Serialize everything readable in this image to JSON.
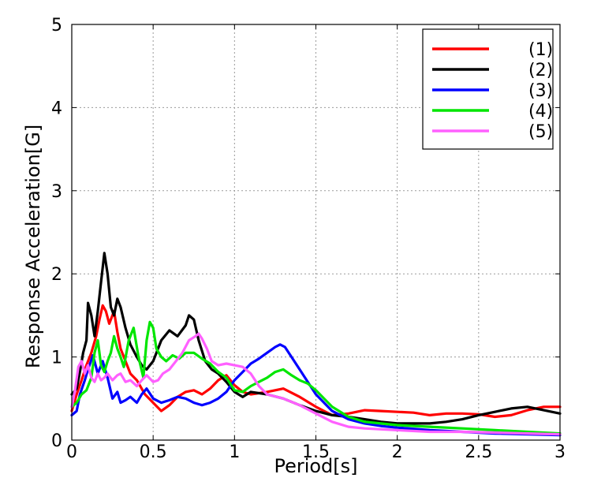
{
  "chart_data": {
    "type": "line",
    "title": "",
    "xlabel": "Period[s]",
    "ylabel": "Response Acceleration[G]",
    "xlim": [
      0,
      3
    ],
    "ylim": [
      0,
      5
    ],
    "xticks": [
      0,
      0.5,
      1,
      1.5,
      2,
      2.5,
      3
    ],
    "xtick_labels": [
      "0",
      "0.5",
      "1",
      "1.5",
      "2",
      "2.5",
      "3"
    ],
    "yticks": [
      0,
      1,
      2,
      3,
      4,
      5
    ],
    "ytick_labels": [
      "0",
      "1",
      "2",
      "3",
      "4",
      "5"
    ],
    "grid": true,
    "legend_position": "top-right",
    "series": [
      {
        "name": "(1)",
        "color": "#ff0000",
        "x": [
          0,
          0.03,
          0.06,
          0.09,
          0.12,
          0.15,
          0.17,
          0.19,
          0.21,
          0.23,
          0.26,
          0.28,
          0.3,
          0.33,
          0.36,
          0.4,
          0.45,
          0.5,
          0.55,
          0.6,
          0.65,
          0.7,
          0.75,
          0.8,
          0.85,
          0.9,
          0.95,
          1.0,
          1.05,
          1.1,
          1.2,
          1.3,
          1.4,
          1.5,
          1.6,
          1.7,
          1.8,
          1.9,
          2.0,
          2.1,
          2.2,
          2.3,
          2.4,
          2.5,
          2.6,
          2.7,
          2.8,
          2.9,
          3.0
        ],
        "y": [
          0.35,
          0.55,
          0.72,
          0.9,
          1.05,
          1.25,
          1.45,
          1.62,
          1.55,
          1.4,
          1.55,
          1.3,
          1.1,
          0.95,
          0.8,
          0.72,
          0.55,
          0.45,
          0.35,
          0.42,
          0.52,
          0.58,
          0.6,
          0.55,
          0.62,
          0.72,
          0.78,
          0.66,
          0.58,
          0.55,
          0.58,
          0.62,
          0.52,
          0.4,
          0.3,
          0.32,
          0.36,
          0.35,
          0.34,
          0.33,
          0.3,
          0.32,
          0.32,
          0.31,
          0.28,
          0.3,
          0.36,
          0.4,
          0.4
        ]
      },
      {
        "name": "(2)",
        "color": "#000000",
        "x": [
          0,
          0.03,
          0.05,
          0.07,
          0.09,
          0.1,
          0.12,
          0.14,
          0.16,
          0.18,
          0.2,
          0.22,
          0.24,
          0.26,
          0.28,
          0.3,
          0.33,
          0.36,
          0.4,
          0.43,
          0.46,
          0.5,
          0.55,
          0.6,
          0.65,
          0.7,
          0.72,
          0.75,
          0.78,
          0.82,
          0.86,
          0.9,
          0.95,
          1.0,
          1.05,
          1.1,
          1.2,
          1.3,
          1.4,
          1.5,
          1.6,
          1.7,
          1.8,
          1.9,
          2.0,
          2.1,
          2.2,
          2.3,
          2.4,
          2.5,
          2.6,
          2.7,
          2.8,
          2.9,
          3.0
        ],
        "y": [
          0.55,
          0.62,
          0.82,
          1.05,
          1.2,
          1.65,
          1.5,
          1.25,
          1.55,
          1.9,
          2.25,
          2.0,
          1.6,
          1.5,
          1.7,
          1.6,
          1.35,
          1.15,
          1.0,
          0.9,
          0.85,
          0.95,
          1.2,
          1.32,
          1.25,
          1.38,
          1.5,
          1.45,
          1.2,
          0.95,
          0.85,
          0.8,
          0.7,
          0.58,
          0.52,
          0.58,
          0.55,
          0.5,
          0.42,
          0.35,
          0.3,
          0.28,
          0.25,
          0.22,
          0.2,
          0.2,
          0.2,
          0.22,
          0.25,
          0.3,
          0.34,
          0.38,
          0.4,
          0.36,
          0.32
        ]
      },
      {
        "name": "(3)",
        "color": "#0000ff",
        "x": [
          0,
          0.03,
          0.05,
          0.08,
          0.1,
          0.13,
          0.16,
          0.19,
          0.22,
          0.25,
          0.28,
          0.3,
          0.33,
          0.36,
          0.4,
          0.43,
          0.46,
          0.5,
          0.55,
          0.6,
          0.65,
          0.7,
          0.75,
          0.8,
          0.85,
          0.9,
          0.95,
          1.0,
          1.05,
          1.1,
          1.15,
          1.2,
          1.25,
          1.28,
          1.31,
          1.35,
          1.4,
          1.45,
          1.5,
          1.6,
          1.7,
          1.8,
          1.9,
          2.0,
          2.2,
          2.4,
          2.6,
          2.8,
          3.0
        ],
        "y": [
          0.3,
          0.35,
          0.55,
          0.72,
          0.85,
          1.02,
          0.8,
          0.95,
          0.75,
          0.5,
          0.58,
          0.45,
          0.48,
          0.52,
          0.45,
          0.55,
          0.62,
          0.5,
          0.45,
          0.48,
          0.52,
          0.5,
          0.45,
          0.42,
          0.45,
          0.5,
          0.58,
          0.72,
          0.82,
          0.92,
          0.98,
          1.05,
          1.12,
          1.15,
          1.12,
          1.0,
          0.85,
          0.7,
          0.55,
          0.35,
          0.25,
          0.2,
          0.17,
          0.15,
          0.12,
          0.1,
          0.08,
          0.07,
          0.06
        ]
      },
      {
        "name": "(4)",
        "color": "#00e600",
        "x": [
          0,
          0.03,
          0.06,
          0.09,
          0.12,
          0.14,
          0.16,
          0.18,
          0.2,
          0.22,
          0.24,
          0.26,
          0.28,
          0.3,
          0.32,
          0.35,
          0.38,
          0.41,
          0.44,
          0.46,
          0.48,
          0.5,
          0.52,
          0.55,
          0.58,
          0.62,
          0.66,
          0.7,
          0.75,
          0.8,
          0.85,
          0.9,
          0.95,
          1.0,
          1.05,
          1.1,
          1.15,
          1.2,
          1.25,
          1.3,
          1.35,
          1.4,
          1.45,
          1.5,
          1.6,
          1.7,
          1.8,
          1.9,
          2.0,
          2.2,
          2.4,
          2.6,
          2.8,
          3.0
        ],
        "y": [
          0.4,
          0.45,
          0.55,
          0.6,
          0.75,
          1.05,
          1.2,
          0.9,
          0.82,
          0.95,
          1.05,
          1.25,
          1.1,
          1.0,
          0.88,
          1.2,
          1.35,
          1.0,
          0.75,
          1.2,
          1.42,
          1.35,
          1.1,
          1.0,
          0.95,
          1.02,
          0.98,
          1.05,
          1.05,
          0.98,
          0.92,
          0.82,
          0.75,
          0.6,
          0.58,
          0.65,
          0.7,
          0.75,
          0.82,
          0.85,
          0.78,
          0.72,
          0.68,
          0.6,
          0.4,
          0.28,
          0.22,
          0.2,
          0.18,
          0.16,
          0.14,
          0.12,
          0.1,
          0.08
        ]
      },
      {
        "name": "(5)",
        "color": "#ff60ff",
        "x": [
          0,
          0.02,
          0.04,
          0.06,
          0.08,
          0.1,
          0.12,
          0.14,
          0.16,
          0.18,
          0.2,
          0.22,
          0.25,
          0.28,
          0.3,
          0.33,
          0.36,
          0.4,
          0.43,
          0.46,
          0.5,
          0.53,
          0.56,
          0.6,
          0.64,
          0.68,
          0.72,
          0.76,
          0.78,
          0.8,
          0.83,
          0.86,
          0.9,
          0.95,
          1.0,
          1.05,
          1.1,
          1.15,
          1.2,
          1.3,
          1.4,
          1.5,
          1.6,
          1.7,
          1.8,
          1.9,
          2.0,
          2.2,
          2.4,
          2.6,
          2.8,
          3.0
        ],
        "y": [
          0.4,
          0.6,
          0.88,
          0.95,
          0.8,
          0.9,
          0.75,
          0.7,
          0.8,
          0.72,
          0.75,
          0.8,
          0.72,
          0.78,
          0.8,
          0.7,
          0.72,
          0.65,
          0.72,
          0.78,
          0.7,
          0.72,
          0.8,
          0.85,
          0.95,
          1.05,
          1.2,
          1.25,
          1.28,
          1.22,
          1.1,
          0.95,
          0.9,
          0.92,
          0.9,
          0.88,
          0.8,
          0.65,
          0.55,
          0.5,
          0.42,
          0.32,
          0.22,
          0.16,
          0.14,
          0.13,
          0.12,
          0.1,
          0.1,
          0.09,
          0.08,
          0.07
        ]
      }
    ]
  }
}
